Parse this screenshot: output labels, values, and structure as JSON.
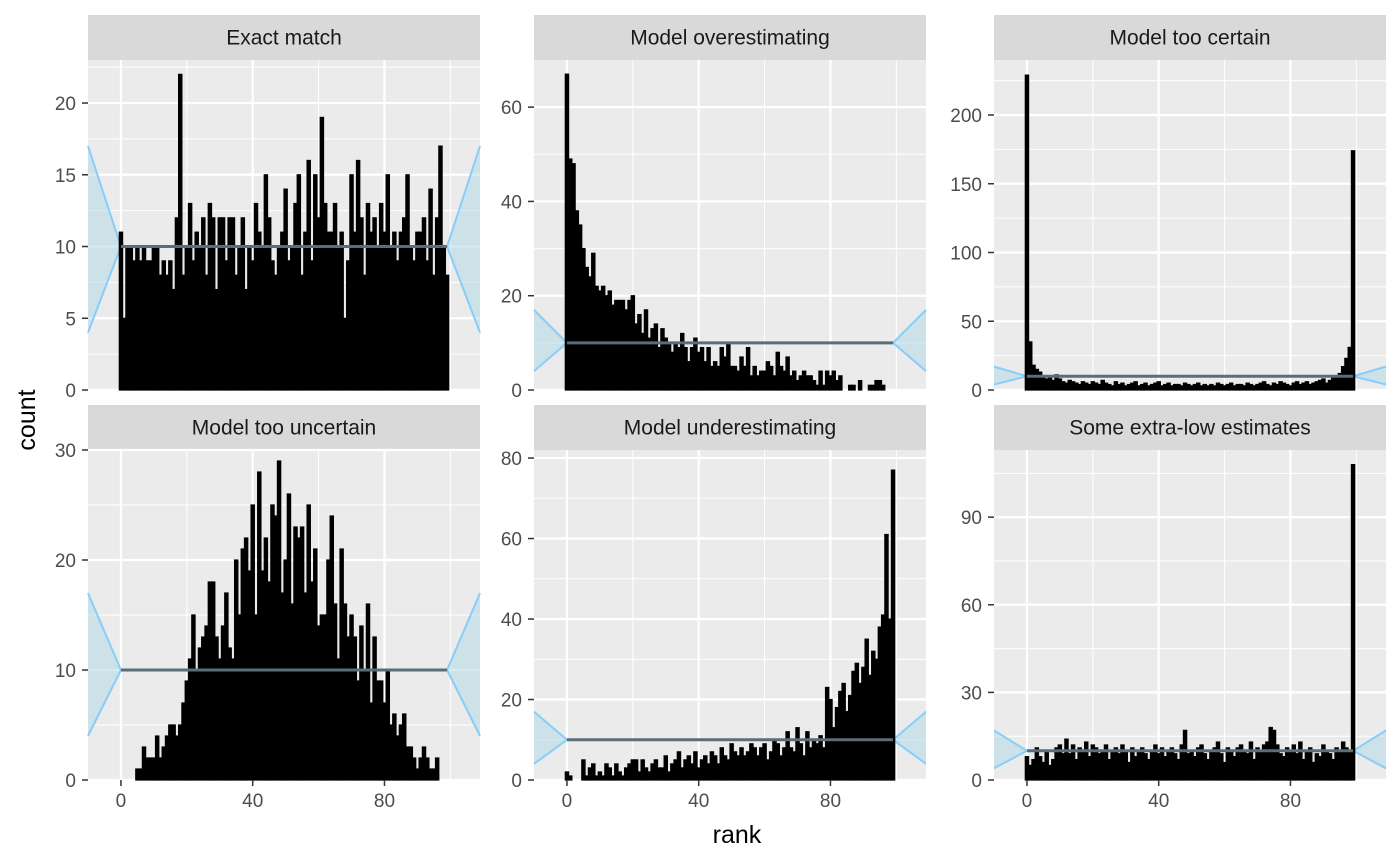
{
  "colors": {
    "panel_background": "#EBEBEB",
    "strip_background": "#D9D9D9",
    "gridline": "#FFFFFF",
    "bar_fill": "#000000",
    "band_fill": "#ADD8E6",
    "band_outline": "#87CEFA",
    "median_line": "#5A6E77"
  },
  "chart_data": {
    "type": "bar",
    "xlabel": "rank",
    "ylabel": "count",
    "x_ticks": [
      0,
      40,
      80
    ],
    "xlim": [
      -10,
      109
    ],
    "reference_band": {
      "x_range": [
        -10,
        109
      ],
      "outer": [
        4,
        17
      ],
      "median": 10,
      "pinch_x": [
        0,
        99
      ]
    },
    "panels": [
      {
        "title": "Exact match",
        "ylim": [
          0,
          23
        ],
        "y_ticks": [
          0,
          5,
          10,
          15,
          20
        ],
        "values": [
          11,
          5,
          10,
          10,
          9,
          10,
          9,
          10,
          9,
          9,
          10,
          10,
          8,
          9,
          8,
          9,
          7,
          12,
          22,
          8,
          10,
          13,
          9,
          11,
          10,
          12,
          8,
          13,
          12,
          7,
          12,
          12,
          9,
          12,
          12,
          8,
          10,
          12,
          7,
          10,
          9,
          13,
          11,
          10,
          15,
          12,
          9,
          8,
          10,
          11,
          14,
          9,
          10,
          13,
          15,
          8,
          11,
          16,
          9,
          15,
          12,
          19,
          13,
          11,
          11,
          13,
          10,
          11,
          5,
          9,
          15,
          11,
          16,
          12,
          8,
          13,
          11,
          12,
          10,
          13,
          11,
          15,
          10,
          11,
          9,
          11,
          12,
          15,
          10,
          9,
          11,
          11,
          12,
          9,
          14,
          8,
          12,
          17,
          10,
          8
        ]
      },
      {
        "title": "Model overestimating",
        "ylim": [
          0,
          70
        ],
        "y_ticks": [
          0,
          20,
          40,
          60
        ],
        "values": [
          67,
          49,
          48,
          38,
          35,
          30,
          26,
          24,
          29,
          22,
          21,
          22,
          20,
          21,
          18,
          19,
          19,
          19,
          17,
          19,
          20,
          14,
          16,
          12,
          17,
          11,
          13,
          14,
          9,
          13,
          11,
          10,
          8,
          10,
          9,
          12,
          9,
          6,
          9,
          11,
          8,
          9,
          6,
          9,
          5,
          6,
          5,
          9,
          7,
          10,
          5,
          5,
          4,
          7,
          5,
          9,
          3,
          5,
          3,
          4,
          4,
          6,
          5,
          3,
          8,
          5,
          4,
          7,
          3,
          4,
          2,
          3,
          4,
          3,
          3,
          2,
          1,
          4,
          1,
          4,
          3,
          4,
          2,
          3,
          0,
          0,
          1,
          1,
          0,
          2,
          0,
          0,
          1,
          1,
          2,
          2,
          1,
          0,
          0,
          0
        ]
      },
      {
        "title": "Model too certain",
        "ylim": [
          0,
          240
        ],
        "y_ticks": [
          0,
          50,
          100,
          150,
          200
        ],
        "values": [
          229,
          35,
          18,
          15,
          13,
          10,
          8,
          9,
          7,
          11,
          8,
          6,
          5,
          7,
          6,
          5,
          4,
          6,
          5,
          4,
          6,
          5,
          4,
          7,
          5,
          4,
          3,
          6,
          4,
          5,
          3,
          4,
          5,
          6,
          3,
          4,
          5,
          3,
          4,
          5,
          6,
          3,
          4,
          5,
          3,
          4,
          4,
          3,
          5,
          4,
          3,
          4,
          5,
          3,
          4,
          3,
          4,
          3,
          5,
          4,
          3,
          4,
          5,
          3,
          4,
          4,
          3,
          5,
          4,
          3,
          4,
          5,
          6,
          4,
          3,
          5,
          4,
          6,
          5,
          4,
          3,
          5,
          6,
          4,
          5,
          6,
          4,
          5,
          6,
          7,
          8,
          5,
          7,
          9,
          10,
          12,
          17,
          23,
          31,
          174
        ]
      },
      {
        "title": "Model too uncertain",
        "ylim": [
          0,
          30
        ],
        "y_ticks": [
          0,
          10,
          20,
          30
        ],
        "values": [
          0,
          0,
          0,
          0,
          0,
          1,
          1,
          3,
          2,
          2,
          2,
          4,
          2,
          3,
          4,
          5,
          5,
          4,
          5,
          7,
          9,
          11,
          15,
          10,
          12,
          13,
          14,
          18,
          18,
          13,
          11,
          14,
          17,
          12,
          11,
          20,
          15,
          21,
          22,
          19,
          25,
          15,
          28,
          19,
          22,
          18,
          25,
          24,
          29,
          17,
          20,
          26,
          16,
          23,
          22,
          23,
          17,
          25,
          18,
          21,
          14,
          15,
          15,
          20,
          24,
          16,
          11,
          21,
          16,
          13,
          15,
          13,
          9,
          14,
          10,
          16,
          7,
          13,
          9,
          9,
          7,
          10,
          5,
          6,
          4,
          5,
          6,
          3,
          3,
          2,
          1,
          2,
          3,
          2,
          1,
          1,
          2,
          0,
          0,
          0
        ]
      },
      {
        "title": "Model underestimating",
        "ylim": [
          0,
          82
        ],
        "y_ticks": [
          0,
          20,
          40,
          60,
          80
        ],
        "values": [
          2,
          1,
          0,
          0,
          0,
          5,
          1,
          3,
          4,
          1,
          2,
          1,
          4,
          3,
          1,
          4,
          2,
          1,
          3,
          4,
          5,
          5,
          2,
          5,
          3,
          2,
          4,
          5,
          3,
          3,
          6,
          2,
          4,
          5,
          7,
          3,
          5,
          6,
          4,
          7,
          3,
          5,
          6,
          4,
          7,
          6,
          4,
          8,
          6,
          5,
          9,
          7,
          6,
          8,
          6,
          7,
          9,
          8,
          6,
          8,
          9,
          5,
          7,
          10,
          9,
          6,
          8,
          12,
          8,
          7,
          13,
          9,
          6,
          12,
          8,
          10,
          9,
          11,
          8,
          23,
          20,
          13,
          18,
          22,
          24,
          17,
          21,
          27,
          29,
          24,
          28,
          35,
          26,
          32,
          30,
          38,
          41,
          61,
          40,
          77
        ]
      },
      {
        "title": "Some extra-low estimates",
        "ylim": [
          0,
          113
        ],
        "y_ticks": [
          0,
          30,
          60,
          90
        ],
        "values": [
          8,
          5,
          7,
          11,
          8,
          6,
          10,
          5,
          7,
          11,
          12,
          9,
          14,
          9,
          12,
          7,
          11,
          10,
          13,
          8,
          12,
          11,
          9,
          10,
          12,
          7,
          10,
          11,
          9,
          12,
          10,
          6,
          11,
          8,
          10,
          11,
          9,
          7,
          10,
          12,
          9,
          11,
          8,
          10,
          11,
          9,
          7,
          12,
          17,
          9,
          10,
          8,
          11,
          12,
          9,
          7,
          10,
          11,
          13,
          9,
          6,
          11,
          10,
          8,
          11,
          12,
          10,
          9,
          13,
          7,
          11,
          10,
          12,
          13,
          18,
          17,
          12,
          9,
          8,
          11,
          10,
          12,
          9,
          13,
          7,
          10,
          11,
          6,
          9,
          8,
          12,
          10,
          9,
          7,
          11,
          10,
          13,
          11,
          10,
          108
        ]
      }
    ]
  }
}
